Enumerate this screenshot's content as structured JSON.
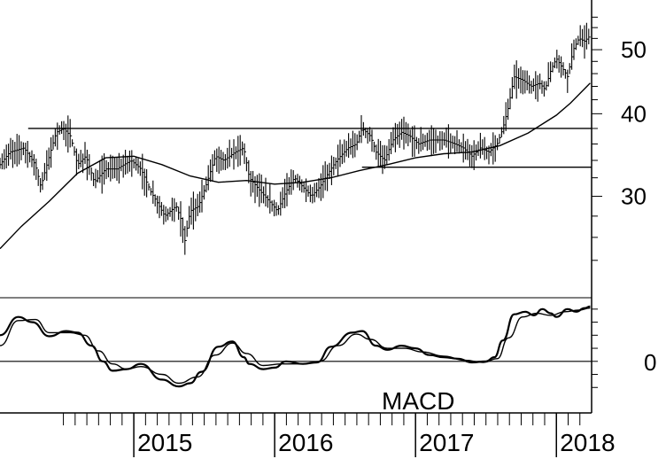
{
  "chart_data": [
    {
      "type": "ohlc",
      "panel": "price",
      "y_scale": "log",
      "ylim": [
        22,
        58
      ],
      "y_ticks": [
        {
          "value": 30,
          "label": "30"
        },
        {
          "value": 40,
          "label": "40"
        },
        {
          "value": 50,
          "label": "50"
        }
      ],
      "x_range": [
        2014.05,
        2018.25
      ],
      "x_labels": [
        {
          "value": 2015,
          "label": "2015"
        },
        {
          "value": 2016,
          "label": "2016"
        },
        {
          "value": 2017,
          "label": "2017"
        },
        {
          "value": 2018,
          "label": "2018"
        }
      ],
      "price_path": [
        [
          2014.05,
          33.5
        ],
        [
          2014.12,
          35.0
        ],
        [
          2014.22,
          35.5
        ],
        [
          2014.3,
          33.5
        ],
        [
          2014.34,
          31.0
        ],
        [
          2014.4,
          34.5
        ],
        [
          2014.45,
          37.5
        ],
        [
          2014.5,
          38.0
        ],
        [
          2014.55,
          37.0
        ],
        [
          2014.6,
          33.5
        ],
        [
          2014.66,
          34.5
        ],
        [
          2014.72,
          31.5
        ],
        [
          2014.8,
          33.0
        ],
        [
          2014.88,
          33.0
        ],
        [
          2014.98,
          34.0
        ],
        [
          2015.05,
          33.0
        ],
        [
          2015.12,
          30.5
        ],
        [
          2015.18,
          29.0
        ],
        [
          2015.22,
          28.0
        ],
        [
          2015.3,
          29.0
        ],
        [
          2015.34,
          27.5
        ],
        [
          2015.36,
          25.5
        ],
        [
          2015.4,
          28.5
        ],
        [
          2015.46,
          29.0
        ],
        [
          2015.52,
          31.5
        ],
        [
          2015.58,
          34.5
        ],
        [
          2015.64,
          34.0
        ],
        [
          2015.72,
          35.0
        ],
        [
          2015.78,
          35.5
        ],
        [
          2015.82,
          32.0
        ],
        [
          2015.9,
          30.5
        ],
        [
          2015.96,
          29.5
        ],
        [
          2016.02,
          28.5
        ],
        [
          2016.08,
          30.5
        ],
        [
          2016.14,
          32.0
        ],
        [
          2016.2,
          31.0
        ],
        [
          2016.26,
          30.0
        ],
        [
          2016.32,
          31.0
        ],
        [
          2016.38,
          32.5
        ],
        [
          2016.44,
          34.0
        ],
        [
          2016.52,
          35.5
        ],
        [
          2016.58,
          36.0
        ],
        [
          2016.62,
          38.0
        ],
        [
          2016.68,
          37.0
        ],
        [
          2016.72,
          35.0
        ],
        [
          2016.78,
          34.0
        ],
        [
          2016.84,
          36.5
        ],
        [
          2016.9,
          37.5
        ],
        [
          2016.96,
          37.0
        ],
        [
          2017.02,
          36.0
        ],
        [
          2017.1,
          36.5
        ],
        [
          2017.2,
          36.5
        ],
        [
          2017.28,
          36.0
        ],
        [
          2017.34,
          35.5
        ],
        [
          2017.4,
          34.5
        ],
        [
          2017.46,
          35.5
        ],
        [
          2017.52,
          35.0
        ],
        [
          2017.58,
          36.0
        ],
        [
          2017.62,
          38.0
        ],
        [
          2017.66,
          41.0
        ],
        [
          2017.7,
          45.5
        ],
        [
          2017.76,
          45.0
        ],
        [
          2017.82,
          44.0
        ],
        [
          2017.88,
          44.5
        ],
        [
          2017.92,
          43.5
        ],
        [
          2017.96,
          46.5
        ],
        [
          2018.0,
          48.5
        ],
        [
          2018.04,
          47.0
        ],
        [
          2018.08,
          45.5
        ],
        [
          2018.12,
          50.0
        ],
        [
          2018.16,
          52.0
        ],
        [
          2018.2,
          51.5
        ],
        [
          2018.24,
          52.5
        ]
      ],
      "moving_average": [
        [
          2014.05,
          25.0
        ],
        [
          2014.2,
          27.0
        ],
        [
          2014.4,
          29.5
        ],
        [
          2014.6,
          32.5
        ],
        [
          2014.8,
          34.3
        ],
        [
          2015.0,
          34.5
        ],
        [
          2015.2,
          33.5
        ],
        [
          2015.4,
          32.2
        ],
        [
          2015.6,
          31.5
        ],
        [
          2015.8,
          31.7
        ],
        [
          2016.0,
          31.3
        ],
        [
          2016.2,
          31.5
        ],
        [
          2016.4,
          32.0
        ],
        [
          2016.6,
          32.8
        ],
        [
          2016.8,
          33.5
        ],
        [
          2017.0,
          34.3
        ],
        [
          2017.2,
          34.8
        ],
        [
          2017.4,
          35.0
        ],
        [
          2017.6,
          35.8
        ],
        [
          2017.8,
          37.4
        ],
        [
          2018.0,
          39.8
        ],
        [
          2018.1,
          41.5
        ],
        [
          2018.24,
          44.5
        ]
      ],
      "horizontal_lines": [
        {
          "value": 38.0,
          "x_start": 2014.25,
          "x_end": 2018.25
        },
        {
          "value": 33.2,
          "x_start": 2016.62,
          "x_end": 2018.25
        }
      ]
    },
    {
      "type": "line",
      "panel": "indicator",
      "label": "MACD",
      "ylim": [
        -0.75,
        1.15
      ],
      "y_ticks": [
        {
          "value": 0,
          "label": "0"
        }
      ],
      "zero_line": true,
      "series": [
        {
          "values": [
            [
              2014.05,
              0.5
            ],
            [
              2014.18,
              0.85
            ],
            [
              2014.28,
              0.75
            ],
            [
              2014.4,
              0.48
            ],
            [
              2014.52,
              0.58
            ],
            [
              2014.6,
              0.55
            ],
            [
              2014.7,
              0.3
            ],
            [
              2014.78,
              0.0
            ],
            [
              2014.85,
              -0.18
            ],
            [
              2014.95,
              -0.15
            ],
            [
              2015.05,
              -0.05
            ],
            [
              2015.2,
              -0.35
            ],
            [
              2015.32,
              -0.48
            ],
            [
              2015.4,
              -0.42
            ],
            [
              2015.48,
              -0.2
            ],
            [
              2015.6,
              0.28
            ],
            [
              2015.7,
              0.38
            ],
            [
              2015.78,
              0.08
            ],
            [
              2015.82,
              -0.05
            ],
            [
              2015.92,
              -0.15
            ],
            [
              2016.0,
              -0.12
            ],
            [
              2016.08,
              0.0
            ],
            [
              2016.2,
              -0.05
            ],
            [
              2016.3,
              -0.02
            ],
            [
              2016.4,
              0.28
            ],
            [
              2016.55,
              0.55
            ],
            [
              2016.62,
              0.58
            ],
            [
              2016.72,
              0.3
            ],
            [
              2016.8,
              0.22
            ],
            [
              2016.9,
              0.3
            ],
            [
              2017.0,
              0.25
            ],
            [
              2017.1,
              0.12
            ],
            [
              2017.2,
              0.08
            ],
            [
              2017.3,
              0.05
            ],
            [
              2017.4,
              -0.02
            ],
            [
              2017.5,
              0.0
            ],
            [
              2017.56,
              0.08
            ],
            [
              2017.62,
              0.4
            ],
            [
              2017.7,
              0.9
            ],
            [
              2017.78,
              0.95
            ],
            [
              2017.84,
              0.88
            ],
            [
              2017.9,
              1.0
            ],
            [
              2017.96,
              0.92
            ],
            [
              2018.0,
              0.85
            ],
            [
              2018.08,
              1.0
            ],
            [
              2018.14,
              0.95
            ],
            [
              2018.2,
              1.02
            ],
            [
              2018.24,
              1.05
            ]
          ]
        },
        {
          "values": [
            [
              2014.05,
              0.3
            ],
            [
              2014.18,
              0.78
            ],
            [
              2014.3,
              0.8
            ],
            [
              2014.4,
              0.55
            ],
            [
              2014.55,
              0.55
            ],
            [
              2014.65,
              0.5
            ],
            [
              2014.75,
              0.2
            ],
            [
              2014.85,
              -0.05
            ],
            [
              2014.95,
              -0.15
            ],
            [
              2015.05,
              -0.1
            ],
            [
              2015.2,
              -0.25
            ],
            [
              2015.32,
              -0.42
            ],
            [
              2015.45,
              -0.3
            ],
            [
              2015.58,
              0.12
            ],
            [
              2015.7,
              0.35
            ],
            [
              2015.8,
              0.15
            ],
            [
              2015.92,
              -0.08
            ],
            [
              2016.05,
              -0.05
            ],
            [
              2016.2,
              -0.05
            ],
            [
              2016.32,
              0.0
            ],
            [
              2016.45,
              0.3
            ],
            [
              2016.58,
              0.52
            ],
            [
              2016.68,
              0.42
            ],
            [
              2016.8,
              0.25
            ],
            [
              2016.92,
              0.25
            ],
            [
              2017.05,
              0.18
            ],
            [
              2017.2,
              0.1
            ],
            [
              2017.35,
              0.02
            ],
            [
              2017.48,
              -0.02
            ],
            [
              2017.58,
              0.05
            ],
            [
              2017.66,
              0.45
            ],
            [
              2017.76,
              0.85
            ],
            [
              2017.86,
              0.92
            ],
            [
              2017.96,
              0.88
            ],
            [
              2018.06,
              0.95
            ],
            [
              2018.16,
              0.98
            ],
            [
              2018.24,
              1.02
            ]
          ]
        }
      ]
    }
  ]
}
